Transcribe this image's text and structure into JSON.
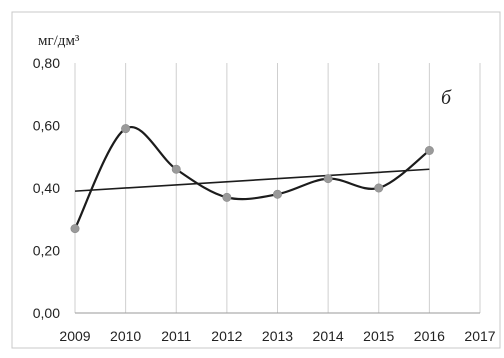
{
  "chart_data": {
    "type": "line",
    "unit_label": "мг/дм³",
    "panel_label": "б",
    "x": [
      2009,
      2010,
      2011,
      2012,
      2013,
      2014,
      2015,
      2016
    ],
    "x_tick_labels": [
      "2009",
      "2010",
      "2011",
      "2012",
      "2013",
      "2014",
      "2015",
      "2016",
      "2017"
    ],
    "y_tick_labels": [
      "0,00",
      "0,20",
      "0,40",
      "0,60",
      "0,80"
    ],
    "xlim": [
      2009,
      2017
    ],
    "ylim": [
      0,
      0.8
    ],
    "grid": "vertical",
    "series": [
      {
        "values": [
          0.27,
          0.59,
          0.46,
          0.37,
          0.38,
          0.43,
          0.4,
          0.52
        ]
      }
    ],
    "trendline": {
      "type": "linear",
      "x": [
        2009,
        2016
      ],
      "values": [
        0.39,
        0.46
      ]
    },
    "colors": {
      "line": "#1c1c1c",
      "marker": "#9a9a9a",
      "grid": "#cfcfcf",
      "frame": "#c8c8c8"
    }
  }
}
